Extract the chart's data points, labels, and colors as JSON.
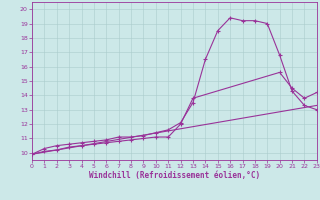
{
  "background_color": "#cce8e8",
  "line_color": "#993399",
  "grid_color": "#aacccc",
  "xlabel": "Windchill (Refroidissement éolien,°C)",
  "xlim": [
    0,
    23
  ],
  "ylim": [
    9.5,
    20.5
  ],
  "xticks": [
    0,
    1,
    2,
    3,
    4,
    5,
    6,
    7,
    8,
    9,
    10,
    11,
    12,
    13,
    14,
    15,
    16,
    17,
    18,
    19,
    20,
    21,
    22,
    23
  ],
  "yticks": [
    10,
    11,
    12,
    13,
    14,
    15,
    16,
    17,
    18,
    19,
    20
  ],
  "series": [
    {
      "x": [
        0,
        1,
        2,
        3,
        4,
        5,
        6,
        7,
        8,
        9,
        10,
        11,
        12,
        13,
        14,
        15,
        16,
        17,
        18,
        19,
        20,
        21,
        22,
        23
      ],
      "y": [
        9.9,
        10.3,
        10.5,
        10.6,
        10.7,
        10.8,
        10.9,
        11.1,
        11.1,
        11.2,
        11.4,
        11.6,
        12.1,
        13.5,
        16.5,
        18.5,
        19.4,
        19.2,
        19.2,
        19.0,
        16.8,
        14.3,
        13.3,
        13.0
      ],
      "marker": "+",
      "lw": 0.8
    },
    {
      "x": [
        0,
        1,
        2,
        3,
        4,
        5,
        6,
        7,
        8,
        9,
        10,
        11,
        12,
        13,
        20,
        21,
        22,
        23
      ],
      "y": [
        9.9,
        10.1,
        10.2,
        10.4,
        10.5,
        10.6,
        10.7,
        10.8,
        10.9,
        11.0,
        11.1,
        11.1,
        12.0,
        13.8,
        15.6,
        14.5,
        13.8,
        14.2
      ],
      "marker": "+",
      "lw": 0.8
    },
    {
      "x": [
        0,
        23
      ],
      "y": [
        9.9,
        13.3
      ],
      "marker": null,
      "lw": 0.8
    }
  ]
}
